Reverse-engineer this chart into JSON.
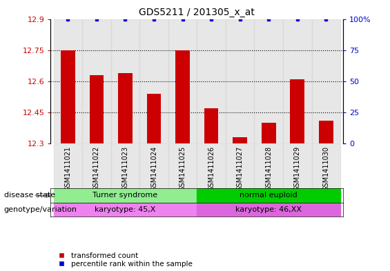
{
  "title": "GDS5211 / 201305_x_at",
  "samples": [
    "GSM1411021",
    "GSM1411022",
    "GSM1411023",
    "GSM1411024",
    "GSM1411025",
    "GSM1411026",
    "GSM1411027",
    "GSM1411028",
    "GSM1411029",
    "GSM1411030"
  ],
  "transformed_count": [
    12.75,
    12.63,
    12.64,
    12.54,
    12.75,
    12.47,
    12.33,
    12.4,
    12.61,
    12.41
  ],
  "percentile_rank": [
    100,
    100,
    100,
    100,
    100,
    100,
    100,
    100,
    100,
    100
  ],
  "ylim_left": [
    12.3,
    12.9
  ],
  "ylim_right": [
    0,
    100
  ],
  "yticks_left": [
    12.3,
    12.45,
    12.6,
    12.75,
    12.9
  ],
  "ytick_labels_left": [
    "12.3",
    "12.45",
    "12.6",
    "12.75",
    "12.9"
  ],
  "yticks_right": [
    0,
    25,
    50,
    75,
    100
  ],
  "ytick_labels_right": [
    "0",
    "25",
    "50",
    "75",
    "100%"
  ],
  "bar_color": "#cc0000",
  "dot_color": "#0000cc",
  "bar_bottom": 12.3,
  "grid_yticks": [
    12.45,
    12.6,
    12.75
  ],
  "disease_state_groups": [
    {
      "label": "Turner syndrome",
      "start": 0,
      "end": 5,
      "color": "#90ee90"
    },
    {
      "label": "normal euploid",
      "start": 5,
      "end": 10,
      "color": "#00cc00"
    }
  ],
  "genotype_groups": [
    {
      "label": "karyotype: 45,X",
      "start": 0,
      "end": 5,
      "color": "#ee82ee"
    },
    {
      "label": "karyotype: 46,XX",
      "start": 5,
      "end": 10,
      "color": "#dd66dd"
    }
  ],
  "legend_items": [
    {
      "label": "transformed count",
      "color": "#cc0000",
      "marker": "s"
    },
    {
      "label": "percentile rank within the sample",
      "color": "#0000cc",
      "marker": "s"
    }
  ],
  "left_label_disease": "disease state",
  "left_label_genotype": "genotype/variation",
  "bar_width": 0.5
}
